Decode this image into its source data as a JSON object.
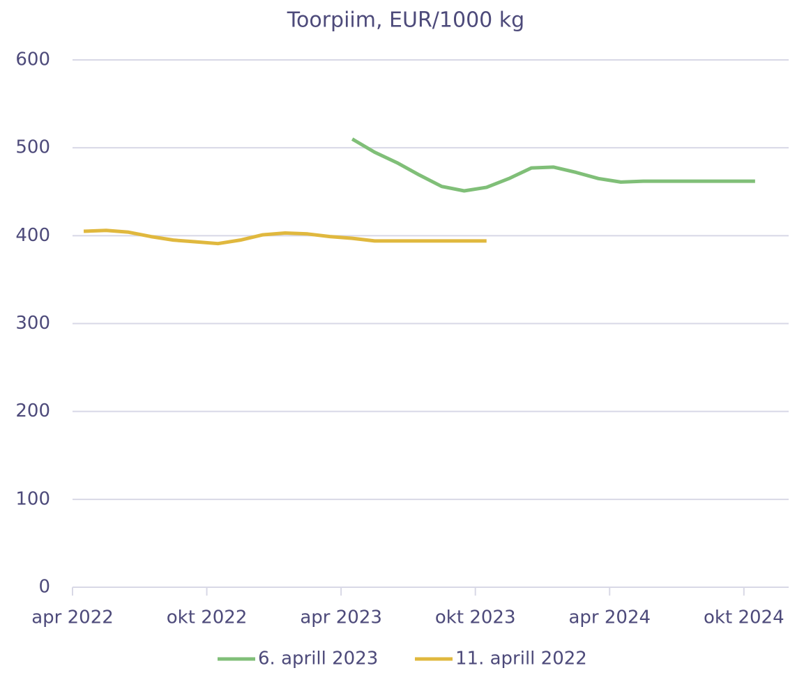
{
  "chart_data": {
    "type": "line",
    "title": "Toorpiim, EUR/1000 kg",
    "x": [
      "2022-04",
      "2022-05",
      "2022-06",
      "2022-07",
      "2022-08",
      "2022-09",
      "2022-10",
      "2022-11",
      "2022-12",
      "2023-01",
      "2023-02",
      "2023-03",
      "2023-04",
      "2023-05",
      "2023-06",
      "2023-07",
      "2023-08",
      "2023-09",
      "2023-10",
      "2023-11",
      "2023-12",
      "2024-01",
      "2024-02",
      "2024-03",
      "2024-04",
      "2024-05",
      "2024-06",
      "2024-07",
      "2024-08",
      "2024-09",
      "2024-10"
    ],
    "series": [
      {
        "name": "6. aprill 2023",
        "color": "#80bf78",
        "values": [
          null,
          null,
          null,
          null,
          null,
          null,
          null,
          null,
          null,
          null,
          null,
          null,
          510,
          495,
          483,
          469,
          456,
          451,
          455,
          465,
          477,
          478,
          472,
          465,
          461,
          462,
          462,
          462,
          462,
          462,
          462
        ]
      },
      {
        "name": "11. aprill 2022",
        "color": "#e0b83e",
        "values": [
          405,
          406,
          404,
          399,
          395,
          393,
          391,
          395,
          401,
          403,
          402,
          399,
          397,
          394,
          394,
          394,
          394,
          394,
          394,
          null,
          null,
          null,
          null,
          null,
          null,
          null,
          null,
          null,
          null,
          null,
          null
        ]
      }
    ],
    "xlim": [
      "2022-04",
      "2024-12"
    ],
    "xticks": [
      {
        "value": "2022-04",
        "label": "apr 2022"
      },
      {
        "value": "2022-10",
        "label": "okt 2022"
      },
      {
        "value": "2023-04",
        "label": "apr 2023"
      },
      {
        "value": "2023-10",
        "label": "okt 2023"
      },
      {
        "value": "2024-04",
        "label": "apr 2024"
      },
      {
        "value": "2024-10",
        "label": "okt 2024"
      }
    ],
    "ylim": [
      0,
      600
    ],
    "yticks": [
      0,
      100,
      200,
      300,
      400,
      500,
      600
    ],
    "grid": true,
    "legend": "bottom"
  }
}
